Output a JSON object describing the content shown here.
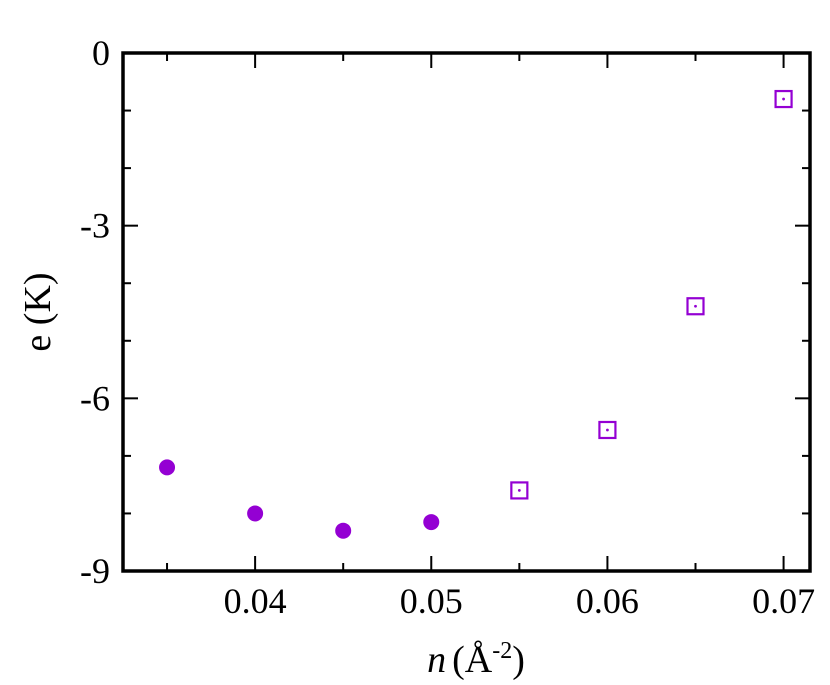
{
  "chart_data": {
    "type": "scatter",
    "xlabel_var": "n",
    "xlabel_unit": "(Å",
    "xlabel_exp": "-2",
    "xlabel_close": ")",
    "ylabel": "e (K)",
    "xlim": [
      0.0325,
      0.0715
    ],
    "ylim": [
      -9,
      0
    ],
    "xticks": [
      0.04,
      0.05,
      0.06,
      0.07
    ],
    "xtick_labels": [
      "0.04",
      "0.05",
      "0.06",
      "0.07"
    ],
    "yticks": [
      0,
      -3,
      -6,
      -9
    ],
    "ytick_labels": [
      "0",
      "-3",
      "-6",
      "-9"
    ],
    "grid": false,
    "series": [
      {
        "marker": "filled-circle",
        "color": "#9400D3",
        "points": [
          {
            "x": 0.035,
            "y": -7.2
          },
          {
            "x": 0.04,
            "y": -8.0
          },
          {
            "x": 0.045,
            "y": -8.3
          },
          {
            "x": 0.05,
            "y": -8.15
          }
        ]
      },
      {
        "marker": "open-square-dot",
        "color": "#9400D3",
        "points": [
          {
            "x": 0.055,
            "y": -7.6
          },
          {
            "x": 0.06,
            "y": -6.55
          },
          {
            "x": 0.065,
            "y": -4.4
          },
          {
            "x": 0.07,
            "y": -0.8
          }
        ]
      }
    ]
  }
}
